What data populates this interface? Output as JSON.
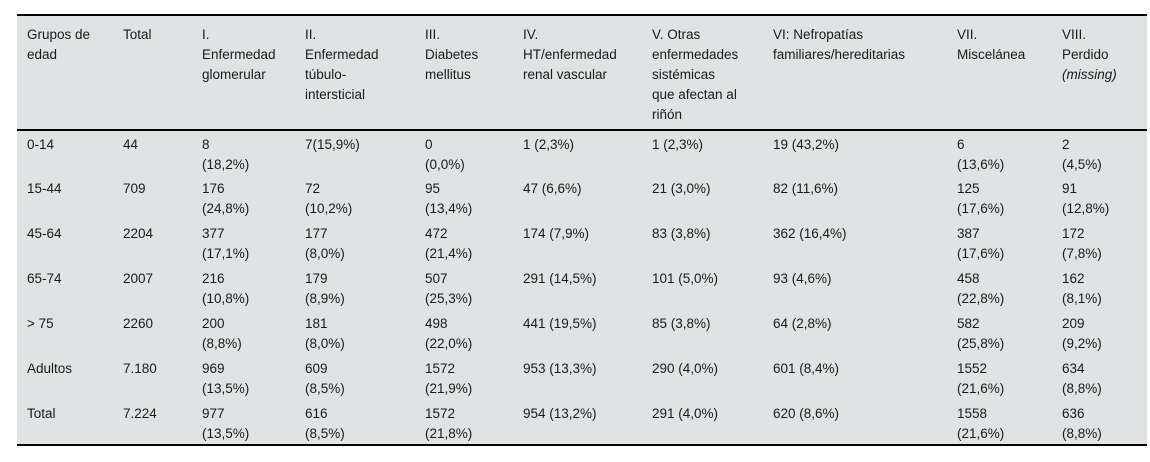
{
  "colors": {
    "table_bg": "#dfe3e4",
    "rule": "#000000",
    "text": "#1a1a1a",
    "page_bg": "#ffffff"
  },
  "table": {
    "description": "Distribución de etiologías de enfermedad renal por grupos de edad",
    "columns": [
      {
        "id": "grupos-de-edad",
        "label": "Grupos de\nedad"
      },
      {
        "id": "total",
        "label": "Total"
      },
      {
        "id": "enfermedad-glomerular",
        "label": "I.\nEnfermedad\nglomerular"
      },
      {
        "id": "enfermedad-tubulo-intersticial",
        "label": "II.\nEnfermedad\ntúbulo-\nintersticial"
      },
      {
        "id": "diabetes-mellitus",
        "label": "III.\nDiabetes\nmellitus"
      },
      {
        "id": "ht-enfermedad-renal-vascular",
        "label": "IV.\nHT/enfermedad\nrenal vascular"
      },
      {
        "id": "otras-enfermedades-sistemicas",
        "label": "V. Otras\nenfermedades\nsistémicas\nque afectan al\nriñón"
      },
      {
        "id": "nefropatias-familiares-hereditarias",
        "label": "VI: Nefropatías\nfamiliares/hereditarias"
      },
      {
        "id": "miscelanea",
        "label": "VII.\nMiscelánea"
      },
      {
        "id": "perdido",
        "label": "VIII.\nPerdido",
        "italic_note": "(missing)"
      }
    ],
    "rows": [
      {
        "id": "0-14",
        "cells": [
          "0-14",
          "44",
          "8\n(18,2%)",
          "7(15,9%)",
          "0\n(0,0%)",
          "1 (2,3%)",
          "1 (2,3%)",
          "19 (43,2%)",
          "6\n(13,6%)",
          "2\n(4,5%)"
        ]
      },
      {
        "id": "15-44",
        "cells": [
          "15-44",
          "709",
          "176\n(24,8%)",
          "72\n(10,2%)",
          "95\n(13,4%)",
          "47 (6,6%)",
          "21 (3,0%)",
          "82 (11,6%)",
          "125\n(17,6%)",
          "91\n(12,8%)"
        ]
      },
      {
        "id": "45-64",
        "cells": [
          "45-64",
          "2204",
          "377\n(17,1%)",
          "177\n(8,0%)",
          "472\n(21,4%)",
          "174 (7,9%)",
          "83 (3,8%)",
          "362 (16,4%)",
          "387\n(17,6%)",
          "172\n(7,8%)"
        ]
      },
      {
        "id": "65-74",
        "cells": [
          "65-74",
          "2007",
          "216\n(10,8%)",
          "179\n(8,9%)",
          "507\n(25,3%)",
          "291 (14,5%)",
          "101 (5,0%)",
          "93 (4,6%)",
          "458\n(22,8%)",
          "162\n(8,1%)"
        ]
      },
      {
        "id": "mayor-75",
        "cells": [
          "> 75",
          "2260",
          "200\n(8,8%)",
          "181\n(8,0%)",
          "498\n(22,0%)",
          "441 (19,5%)",
          "85 (3,8%)",
          "64 (2,8%)",
          "582\n(25,8%)",
          "209\n(9,2%)"
        ]
      },
      {
        "id": "adultos",
        "cells": [
          "Adultos",
          "7.180",
          "969\n(13,5%)",
          "609\n(8,5%)",
          "1572\n(21,9%)",
          "953 (13,3%)",
          "290 (4,0%)",
          "601 (8,4%)",
          "1552\n(21,6%)",
          "634\n(8,8%)"
        ]
      },
      {
        "id": "total",
        "cells": [
          "Total",
          "7.224",
          "977\n(13,5%)",
          "616\n(8,5%)",
          "1572\n(21,8%)",
          "954 (13,2%)",
          "291 (4,0%)",
          "620 (8,6%)",
          "1558\n(21,6%)",
          "636\n(8,8%)"
        ]
      }
    ]
  }
}
